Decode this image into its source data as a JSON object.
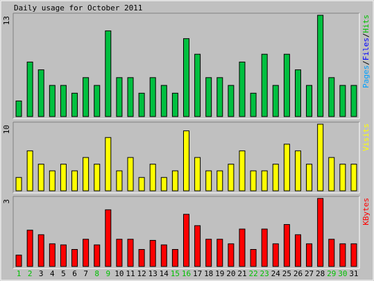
{
  "chart_data": [
    {
      "type": "bar",
      "title": "Daily usage for October 2011",
      "categories": [
        "1",
        "2",
        "3",
        "4",
        "5",
        "6",
        "7",
        "8",
        "9",
        "10",
        "11",
        "12",
        "13",
        "14",
        "15",
        "16",
        "17",
        "18",
        "19",
        "20",
        "21",
        "22",
        "23",
        "24",
        "25",
        "26",
        "27",
        "28",
        "29",
        "30",
        "31"
      ],
      "weekend_days": [
        "1",
        "2",
        "8",
        "9",
        "15",
        "16",
        "22",
        "23",
        "29",
        "30"
      ],
      "series": [
        {
          "name": "Pages",
          "legend_color": "#00a0ff",
          "values": [
            2,
            7,
            6,
            4,
            4,
            3,
            5,
            4,
            11,
            5,
            5,
            3,
            5,
            4,
            3,
            10,
            8,
            5,
            5,
            4,
            7,
            3,
            8,
            4,
            8,
            6,
            4,
            13,
            5,
            4,
            4
          ]
        }
      ],
      "legend": [
        {
          "text": "Pages",
          "color": "#00a0ff"
        },
        {
          "text": "/",
          "color": "#000000"
        },
        {
          "text": "Files",
          "color": "#0000ff"
        },
        {
          "text": "/",
          "color": "#000000"
        },
        {
          "text": "Hits",
          "color": "#00c000"
        }
      ],
      "ymax_label": "13",
      "ylim": [
        0,
        13
      ],
      "bar_color": "#00c040"
    },
    {
      "type": "bar",
      "series": [
        {
          "name": "Visits",
          "legend_color": "#ffff00",
          "values": [
            2,
            6,
            4,
            3,
            4,
            3,
            5,
            4,
            8,
            3,
            5,
            2,
            4,
            2,
            3,
            9,
            5,
            3,
            3,
            4,
            6,
            3,
            3,
            4,
            7,
            6,
            4,
            10,
            5,
            4,
            4
          ]
        }
      ],
      "legend": [
        {
          "text": "Visits",
          "color": "#ffff00"
        }
      ],
      "ymax_label": "10",
      "ylim": [
        0,
        10
      ],
      "bar_color": "#ffff00"
    },
    {
      "type": "bar",
      "series": [
        {
          "name": "KBytes",
          "legend_color": "#ff0000",
          "values": [
            0.5,
            1.6,
            1.4,
            1.0,
            0.95,
            0.75,
            1.2,
            0.95,
            2.5,
            1.2,
            1.2,
            0.75,
            1.15,
            0.95,
            0.75,
            2.3,
            1.8,
            1.2,
            1.2,
            1.0,
            1.65,
            0.75,
            1.65,
            1.0,
            1.85,
            1.4,
            1.0,
            3.0,
            1.2,
            1.0,
            1.0
          ]
        }
      ],
      "legend": [
        {
          "text": "KBytes",
          "color": "#ff0000"
        }
      ],
      "ymax_label": "3",
      "ylim": [
        0,
        3
      ],
      "bar_color": "#ff0000"
    }
  ],
  "colors": {
    "background": "#c0c0c0",
    "panel": "#c0c0c0",
    "axis_label_normal": "#000000",
    "axis_label_weekend": "#00c000"
  }
}
